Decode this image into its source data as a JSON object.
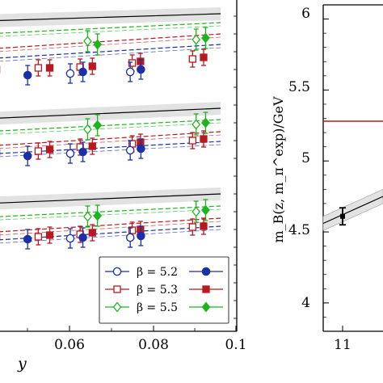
{
  "chart_data": [
    {
      "type": "scatter",
      "xlabel": "y",
      "ylabel": "",
      "x_ticks": [
        0.06,
        0.08,
        0.1
      ],
      "x_tick_labels": [
        "0.06",
        "0.08",
        "0.1"
      ],
      "xlim": [
        0.04,
        0.1
      ],
      "grid": false,
      "legend_position": "bottom-right",
      "series": [
        {
          "name": "β = 5.2",
          "beta": "5.2",
          "color": "#1a2fa8",
          "markers": [
            "open-circle",
            "filled-circle"
          ]
        },
        {
          "name": "β = 5.3",
          "beta": "5.3",
          "color": "#b8191f",
          "markers": [
            "open-square",
            "filled-square"
          ]
        },
        {
          "name": "β = 5.5",
          "beta": "5.5",
          "color": "#1cb51c",
          "markers": [
            "open-diamond",
            "filled-diamond"
          ]
        }
      ],
      "panels": [
        {
          "fit_black": [
            [
              0.04,
              26
            ],
            [
              0.1,
              17
            ]
          ],
          "fit_green": [
            [
              0.04,
              42
            ],
            [
              0.1,
              28
            ]
          ],
          "fit_red": [
            [
              0.04,
              61
            ],
            [
              0.1,
              42
            ]
          ],
          "fit_blue": [
            [
              0.04,
              73
            ],
            [
              0.1,
              55
            ]
          ],
          "points": [
            {
              "set": "green",
              "marker": "filled-diamond",
              "x": 0.0426,
              "y": 62,
              "err": 12
            },
            {
              "set": "green",
              "marker": "open-diamond",
              "x": 0.0663,
              "y": 51,
              "err": 13
            },
            {
              "set": "green",
              "marker": "filled-diamond",
              "x": 0.0688,
              "y": 55,
              "err": 13
            },
            {
              "set": "green",
              "marker": "open-diamond",
              "x": 0.0938,
              "y": 49,
              "err": 13
            },
            {
              "set": "green",
              "marker": "filled-diamond",
              "x": 0.0962,
              "y": 47,
              "err": 13
            },
            {
              "set": "red",
              "marker": "filled-square",
              "x": 0.0432,
              "y": 86,
              "err": 10
            },
            {
              "set": "red",
              "marker": "open-square",
              "x": 0.0538,
              "y": 84,
              "err": 10
            },
            {
              "set": "red",
              "marker": "filled-square",
              "x": 0.0567,
              "y": 84,
              "err": 10
            },
            {
              "set": "red",
              "marker": "open-square",
              "x": 0.0644,
              "y": 83,
              "err": 10
            },
            {
              "set": "red",
              "marker": "filled-square",
              "x": 0.0675,
              "y": 82,
              "err": 10
            },
            {
              "set": "red",
              "marker": "open-square",
              "x": 0.0776,
              "y": 78,
              "err": 10
            },
            {
              "set": "red",
              "marker": "filled-square",
              "x": 0.0797,
              "y": 76,
              "err": 10
            },
            {
              "set": "red",
              "marker": "open-square",
              "x": 0.0929,
              "y": 73,
              "err": 10
            },
            {
              "set": "red",
              "marker": "filled-square",
              "x": 0.0957,
              "y": 71,
              "err": 10
            },
            {
              "set": "blue",
              "marker": "open-circle",
              "x": 0.0429,
              "y": 98,
              "err": 12
            },
            {
              "set": "blue",
              "marker": "filled-circle",
              "x": 0.0511,
              "y": 93,
              "err": 12
            },
            {
              "set": "blue",
              "marker": "open-circle",
              "x": 0.0619,
              "y": 91,
              "err": 12
            },
            {
              "set": "blue",
              "marker": "filled-circle",
              "x": 0.0651,
              "y": 89,
              "err": 12
            },
            {
              "set": "blue",
              "marker": "open-circle",
              "x": 0.0771,
              "y": 89,
              "err": 12
            },
            {
              "set": "blue",
              "marker": "filled-circle",
              "x": 0.0798,
              "y": 86,
              "err": 12
            }
          ]
        },
        {
          "fit_black": [
            [
              0.04,
              147
            ],
            [
              0.1,
              134
            ]
          ],
          "fit_green": [
            [
              0.04,
              163
            ],
            [
              0.1,
              148
            ]
          ],
          "fit_red": [
            [
              0.04,
              181
            ],
            [
              0.1,
              163
            ]
          ],
          "fit_blue": [
            [
              0.04,
              191
            ],
            [
              0.1,
              175
            ]
          ],
          "points": [
            {
              "set": "green",
              "marker": "filled-diamond",
              "x": 0.0426,
              "y": 165,
              "err": 12
            },
            {
              "set": "green",
              "marker": "open-diamond",
              "x": 0.0663,
              "y": 160,
              "err": 13
            },
            {
              "set": "green",
              "marker": "filled-diamond",
              "x": 0.0688,
              "y": 155,
              "err": 13
            },
            {
              "set": "green",
              "marker": "open-diamond",
              "x": 0.0938,
              "y": 154,
              "err": 13
            },
            {
              "set": "green",
              "marker": "filled-diamond",
              "x": 0.0962,
              "y": 152,
              "err": 13
            },
            {
              "set": "red",
              "marker": "filled-square",
              "x": 0.0432,
              "y": 188,
              "err": 10
            },
            {
              "set": "red",
              "marker": "open-square",
              "x": 0.0538,
              "y": 187,
              "err": 10
            },
            {
              "set": "red",
              "marker": "filled-square",
              "x": 0.0567,
              "y": 185,
              "err": 10
            },
            {
              "set": "red",
              "marker": "open-square",
              "x": 0.0644,
              "y": 182,
              "err": 10
            },
            {
              "set": "red",
              "marker": "filled-square",
              "x": 0.0675,
              "y": 181,
              "err": 10
            },
            {
              "set": "red",
              "marker": "open-square",
              "x": 0.0776,
              "y": 178,
              "err": 10
            },
            {
              "set": "red",
              "marker": "filled-square",
              "x": 0.0797,
              "y": 176,
              "err": 10
            },
            {
              "set": "red",
              "marker": "open-square",
              "x": 0.0929,
              "y": 174,
              "err": 10
            },
            {
              "set": "red",
              "marker": "filled-square",
              "x": 0.0957,
              "y": 172,
              "err": 10
            },
            {
              "set": "blue",
              "marker": "open-circle",
              "x": 0.0429,
              "y": 198,
              "err": 12
            },
            {
              "set": "blue",
              "marker": "filled-circle",
              "x": 0.0511,
              "y": 193,
              "err": 12
            },
            {
              "set": "blue",
              "marker": "open-circle",
              "x": 0.0619,
              "y": 190,
              "err": 12
            },
            {
              "set": "blue",
              "marker": "filled-circle",
              "x": 0.0651,
              "y": 188,
              "err": 12
            },
            {
              "set": "blue",
              "marker": "open-circle",
              "x": 0.0771,
              "y": 186,
              "err": 12
            },
            {
              "set": "blue",
              "marker": "filled-circle",
              "x": 0.0798,
              "y": 184,
              "err": 12
            }
          ]
        },
        {
          "fit_black": [
            [
              0.04,
              252
            ],
            [
              0.1,
              240
            ]
          ],
          "fit_green": [
            [
              0.04,
              269
            ],
            [
              0.1,
              255
            ]
          ],
          "fit_red": [
            [
              0.04,
              288
            ],
            [
              0.1,
              270
            ]
          ],
          "fit_blue": [
            [
              0.04,
              298
            ],
            [
              0.1,
              280
            ]
          ],
          "points": [
            {
              "set": "green",
              "marker": "filled-diamond",
              "x": 0.0426,
              "y": 271,
              "err": 12
            },
            {
              "set": "green",
              "marker": "open-diamond",
              "x": 0.0663,
              "y": 268,
              "err": 13
            },
            {
              "set": "green",
              "marker": "filled-diamond",
              "x": 0.0688,
              "y": 267,
              "err": 13
            },
            {
              "set": "green",
              "marker": "open-diamond",
              "x": 0.0938,
              "y": 262,
              "err": 13
            },
            {
              "set": "green",
              "marker": "filled-diamond",
              "x": 0.0962,
              "y": 260,
              "err": 13
            },
            {
              "set": "red",
              "marker": "filled-square",
              "x": 0.0432,
              "y": 293,
              "err": 10
            },
            {
              "set": "red",
              "marker": "open-square",
              "x": 0.0538,
              "y": 293,
              "err": 10
            },
            {
              "set": "red",
              "marker": "filled-square",
              "x": 0.0567,
              "y": 291,
              "err": 10
            },
            {
              "set": "red",
              "marker": "open-square",
              "x": 0.0644,
              "y": 290,
              "err": 10
            },
            {
              "set": "red",
              "marker": "filled-square",
              "x": 0.0675,
              "y": 288,
              "err": 10
            },
            {
              "set": "red",
              "marker": "open-square",
              "x": 0.0776,
              "y": 285,
              "err": 10
            },
            {
              "set": "red",
              "marker": "filled-square",
              "x": 0.0797,
              "y": 284,
              "err": 10
            },
            {
              "set": "red",
              "marker": "open-square",
              "x": 0.0929,
              "y": 281,
              "err": 10
            },
            {
              "set": "red",
              "marker": "filled-square",
              "x": 0.0957,
              "y": 280,
              "err": 10
            },
            {
              "set": "blue",
              "marker": "open-circle",
              "x": 0.0429,
              "y": 298,
              "err": 12
            },
            {
              "set": "blue",
              "marker": "filled-circle",
              "x": 0.0511,
              "y": 296,
              "err": 12
            },
            {
              "set": "blue",
              "marker": "open-circle",
              "x": 0.0619,
              "y": 295,
              "err": 12
            },
            {
              "set": "blue",
              "marker": "filled-circle",
              "x": 0.0651,
              "y": 294,
              "err": 12
            },
            {
              "set": "blue",
              "marker": "open-circle",
              "x": 0.0771,
              "y": 294,
              "err": 12
            },
            {
              "set": "blue",
              "marker": "filled-circle",
              "x": 0.0798,
              "y": 292,
              "err": 12
            }
          ]
        }
      ]
    },
    {
      "type": "line",
      "xlabel": "",
      "ylabel": "m_B(z, m_π^exp)/GeV",
      "ylim": [
        3.8,
        6.1
      ],
      "y_ticks": [
        4,
        4.5,
        5,
        5.5,
        6
      ],
      "y_tick_labels": [
        "4",
        "4.5",
        "5",
        "5.5",
        "6"
      ],
      "xlim": [
        10.8,
        12
      ],
      "x_ticks": [
        11
      ],
      "x_tick_labels": [
        "11"
      ],
      "grid": false,
      "reference_line": {
        "y": 5.28,
        "color": "#b8191f"
      },
      "point": {
        "x": 11,
        "y": 4.61,
        "err": 0.06
      },
      "fit_line": [
        [
          10.8,
          4.56
        ],
        [
          12,
          5.16
        ]
      ],
      "fit_band_halfwidth": 0.05
    }
  ]
}
